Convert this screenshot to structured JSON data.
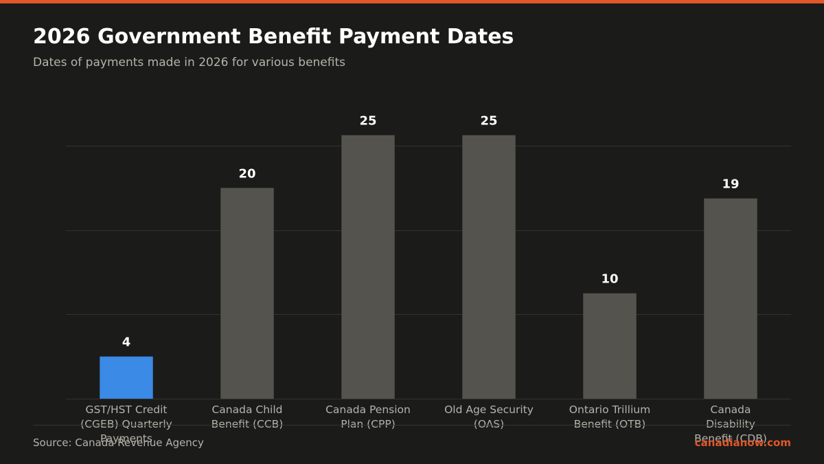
{
  "header": {
    "title": "2026 Government Benefit Payment Dates",
    "subtitle": "Dates of payments made in 2026 for various benefits"
  },
  "footer": {
    "source": "Source: Canada Revenue Agency",
    "brand": "canadianow.com"
  },
  "colors": {
    "accent": "#e0572a",
    "highlight_bar": "#3a8ae6",
    "bar": "#54534d",
    "background": "#1b1b19",
    "grid": "#33332f",
    "value_label": "#ffffff",
    "tick_label": "#b5b3ab"
  },
  "chart_data": {
    "type": "bar",
    "title": "2026 Government Benefit Payment Dates",
    "subtitle": "Dates of payments made in 2026 for various benefits",
    "xlabel": "",
    "ylabel": "",
    "categories": [
      [
        "GST/HST Credit",
        "(CGEB) Quarterly",
        "Payments"
      ],
      [
        "Canada Child",
        "Benefit (CCB)"
      ],
      [
        "Canada Pension",
        "Plan (CPP)"
      ],
      [
        "Old Age Security",
        "(OAS)"
      ],
      [
        "Ontario Trillium",
        "Benefit (OTB)"
      ],
      [
        "Canada",
        "Disability",
        "Benefit (CDB)"
      ]
    ],
    "values": [
      4,
      20,
      25,
      25,
      10,
      19
    ],
    "highlight_index": 0,
    "ylim": [
      0,
      30
    ],
    "yticks": [
      0,
      8,
      16,
      24
    ],
    "grid": true,
    "legend": false,
    "show_y_tick_labels": false
  }
}
